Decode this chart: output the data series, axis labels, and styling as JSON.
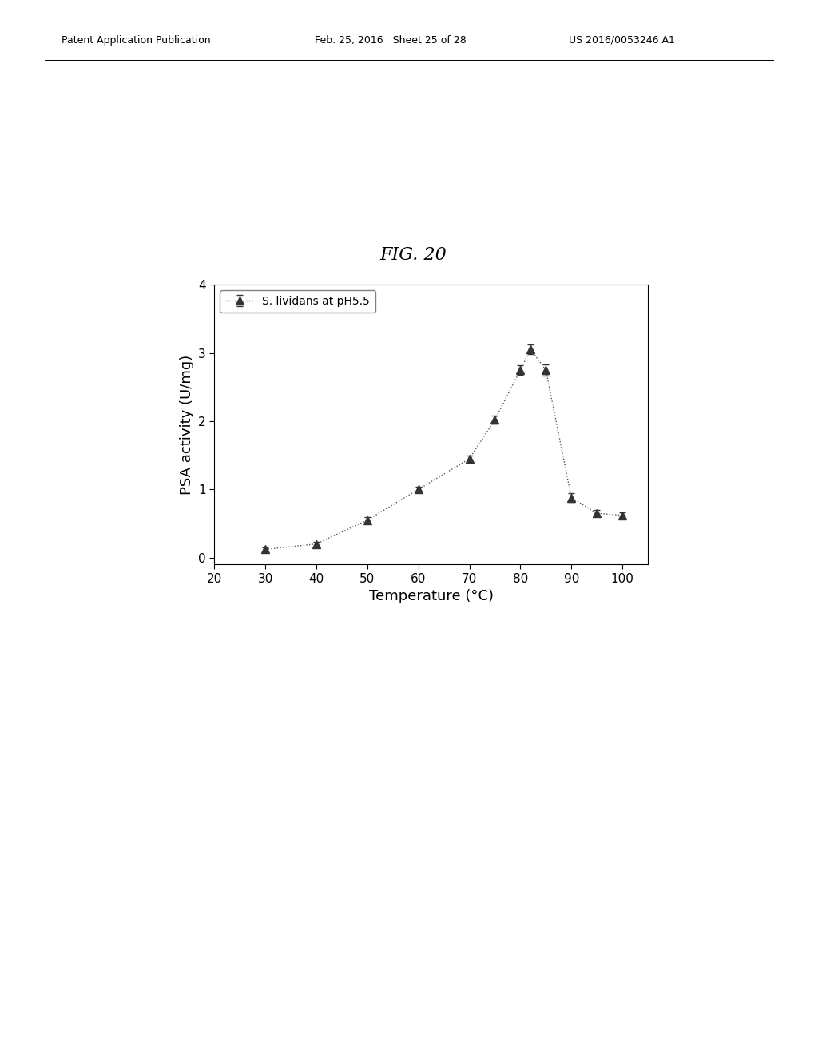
{
  "title": "FIG. 20",
  "xlabel": "Temperature (°C)",
  "ylabel": "PSA activity (U/mg)",
  "x": [
    30,
    40,
    50,
    60,
    70,
    75,
    80,
    82,
    85,
    90,
    95,
    100
  ],
  "y": [
    0.12,
    0.2,
    0.55,
    1.0,
    1.45,
    2.02,
    2.75,
    3.05,
    2.75,
    0.88,
    0.65,
    0.62
  ],
  "yerr": [
    0.03,
    0.03,
    0.04,
    0.04,
    0.05,
    0.06,
    0.07,
    0.07,
    0.08,
    0.06,
    0.05,
    0.05
  ],
  "xlim": [
    20,
    105
  ],
  "ylim": [
    -0.1,
    4.0
  ],
  "xticks": [
    20,
    30,
    40,
    50,
    60,
    70,
    80,
    90,
    100
  ],
  "yticks": [
    0,
    1,
    2,
    3,
    4
  ],
  "legend_label": "S. lividans at pH5.5",
  "line_color": "#555555",
  "marker_color": "#333333",
  "background_color": "#ffffff",
  "title_fontsize": 16,
  "axis_fontsize": 13,
  "tick_fontsize": 11,
  "legend_fontsize": 10,
  "header_left": "Patent Application Publication",
  "header_mid": "Feb. 25, 2016   Sheet 25 of 28",
  "header_right": "US 2016/0053246 A1",
  "header_fontsize": 9,
  "fig_title_fontsize": 16
}
